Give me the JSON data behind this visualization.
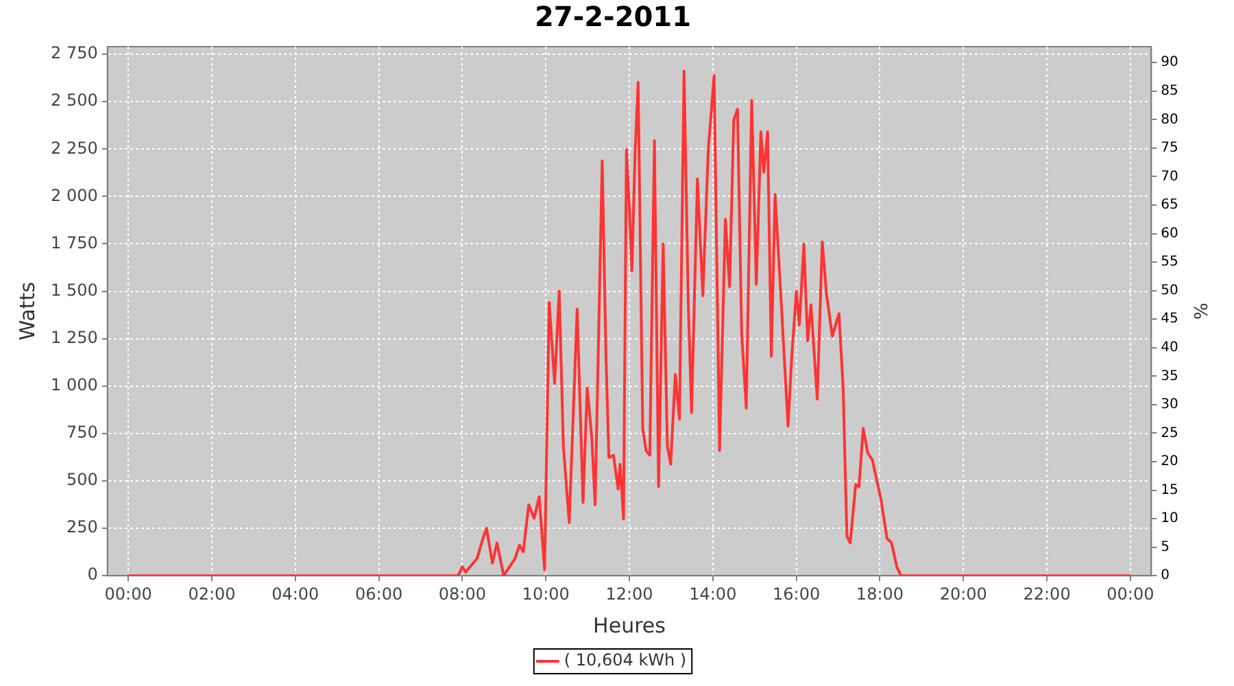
{
  "chart_data": {
    "type": "line",
    "title": "27-2-2011",
    "xlabel": "Heures",
    "ylabel": "Watts",
    "y2label": "%",
    "xlim": [
      -0.5,
      24.5
    ],
    "xticks": [
      {
        "value": 0,
        "label": "00:00"
      },
      {
        "value": 2,
        "label": "02:00"
      },
      {
        "value": 4,
        "label": "04:00"
      },
      {
        "value": 6,
        "label": "06:00"
      },
      {
        "value": 8,
        "label": "08:00"
      },
      {
        "value": 10,
        "label": "10:00"
      },
      {
        "value": 12,
        "label": "12:00"
      },
      {
        "value": 14,
        "label": "14:00"
      },
      {
        "value": 16,
        "label": "16:00"
      },
      {
        "value": 18,
        "label": "18:00"
      },
      {
        "value": 20,
        "label": "20:00"
      },
      {
        "value": 22,
        "label": "22:00"
      },
      {
        "value": 24,
        "label": "00:00"
      }
    ],
    "ylim": [
      0,
      2790
    ],
    "yticks": [
      0,
      250,
      500,
      750,
      {
        "value": 1000,
        "label": "1 000"
      },
      {
        "value": 1250,
        "label": "1 250"
      },
      {
        "value": 1500,
        "label": "1 500"
      },
      {
        "value": 1750,
        "label": "1 750"
      },
      {
        "value": 2000,
        "label": "2 000"
      },
      {
        "value": 2250,
        "label": "2 250"
      },
      {
        "value": 2500,
        "label": "2 500"
      },
      {
        "value": 2750,
        "label": "2 750"
      }
    ],
    "y2lim": [
      0,
      92.8
    ],
    "y2ticks": [
      0,
      5,
      10,
      15,
      20,
      25,
      30,
      35,
      40,
      45,
      50,
      55,
      60,
      65,
      70,
      75,
      80,
      85,
      90
    ],
    "grid": true,
    "legend": "bottom",
    "marker": "none",
    "line_style": "solid",
    "series": [
      {
        "name": "( 10,604 kWh )",
        "color": "#ff3333",
        "x": [
          0,
          7.9,
          8.0,
          8.08,
          8.35,
          8.51,
          8.58,
          8.72,
          8.83,
          8.99,
          9.26,
          9.37,
          9.46,
          9.59,
          9.72,
          9.84,
          9.97,
          10.08,
          10.21,
          10.32,
          10.42,
          10.56,
          10.75,
          10.89,
          10.99,
          11.1,
          11.18,
          11.35,
          11.44,
          11.51,
          11.62,
          11.73,
          11.78,
          11.86,
          11.93,
          12.0,
          12.06,
          12.14,
          12.21,
          12.32,
          12.4,
          12.49,
          12.6,
          12.7,
          12.81,
          12.91,
          12.99,
          13.1,
          13.2,
          13.31,
          13.41,
          13.49,
          13.63,
          13.76,
          13.89,
          14.03,
          14.16,
          14.3,
          14.4,
          14.5,
          14.59,
          14.69,
          14.8,
          14.93,
          15.04,
          15.15,
          15.22,
          15.31,
          15.4,
          15.49,
          15.65,
          15.8,
          15.89,
          16.0,
          16.07,
          16.18,
          16.27,
          16.35,
          16.5,
          16.62,
          16.72,
          16.86,
          17.02,
          17.12,
          17.21,
          17.29,
          17.42,
          17.5,
          17.6,
          17.71,
          17.82,
          18.03,
          18.17,
          18.28,
          18.41,
          18.51,
          24
        ],
        "values": [
          0,
          0,
          47,
          19,
          90,
          208,
          250,
          66,
          173,
          0,
          90,
          161,
          126,
          374,
          303,
          417,
          31,
          1441,
          1014,
          1500,
          683,
          280,
          1405,
          386,
          991,
          730,
          374,
          2188,
          1157,
          623,
          635,
          457,
          588,
          299,
          2247,
          1939,
          1607,
          2247,
          2602,
          777,
          659,
          635,
          2294,
          469,
          1749,
          683,
          588,
          1062,
          825,
          2661,
          1441,
          860,
          2093,
          1477,
          2247,
          2638,
          659,
          1879,
          1524,
          2401,
          2460,
          1275,
          884,
          2507,
          1536,
          2341,
          2128,
          2341,
          1157,
          2010,
          1394,
          789,
          1157,
          1500,
          1322,
          1749,
          1239,
          1429,
          931,
          1761,
          1488,
          1263,
          1382,
          991,
          209,
          173,
          481,
          469,
          777,
          647,
          611,
          398,
          197,
          173,
          43,
          0,
          0
        ]
      }
    ]
  }
}
